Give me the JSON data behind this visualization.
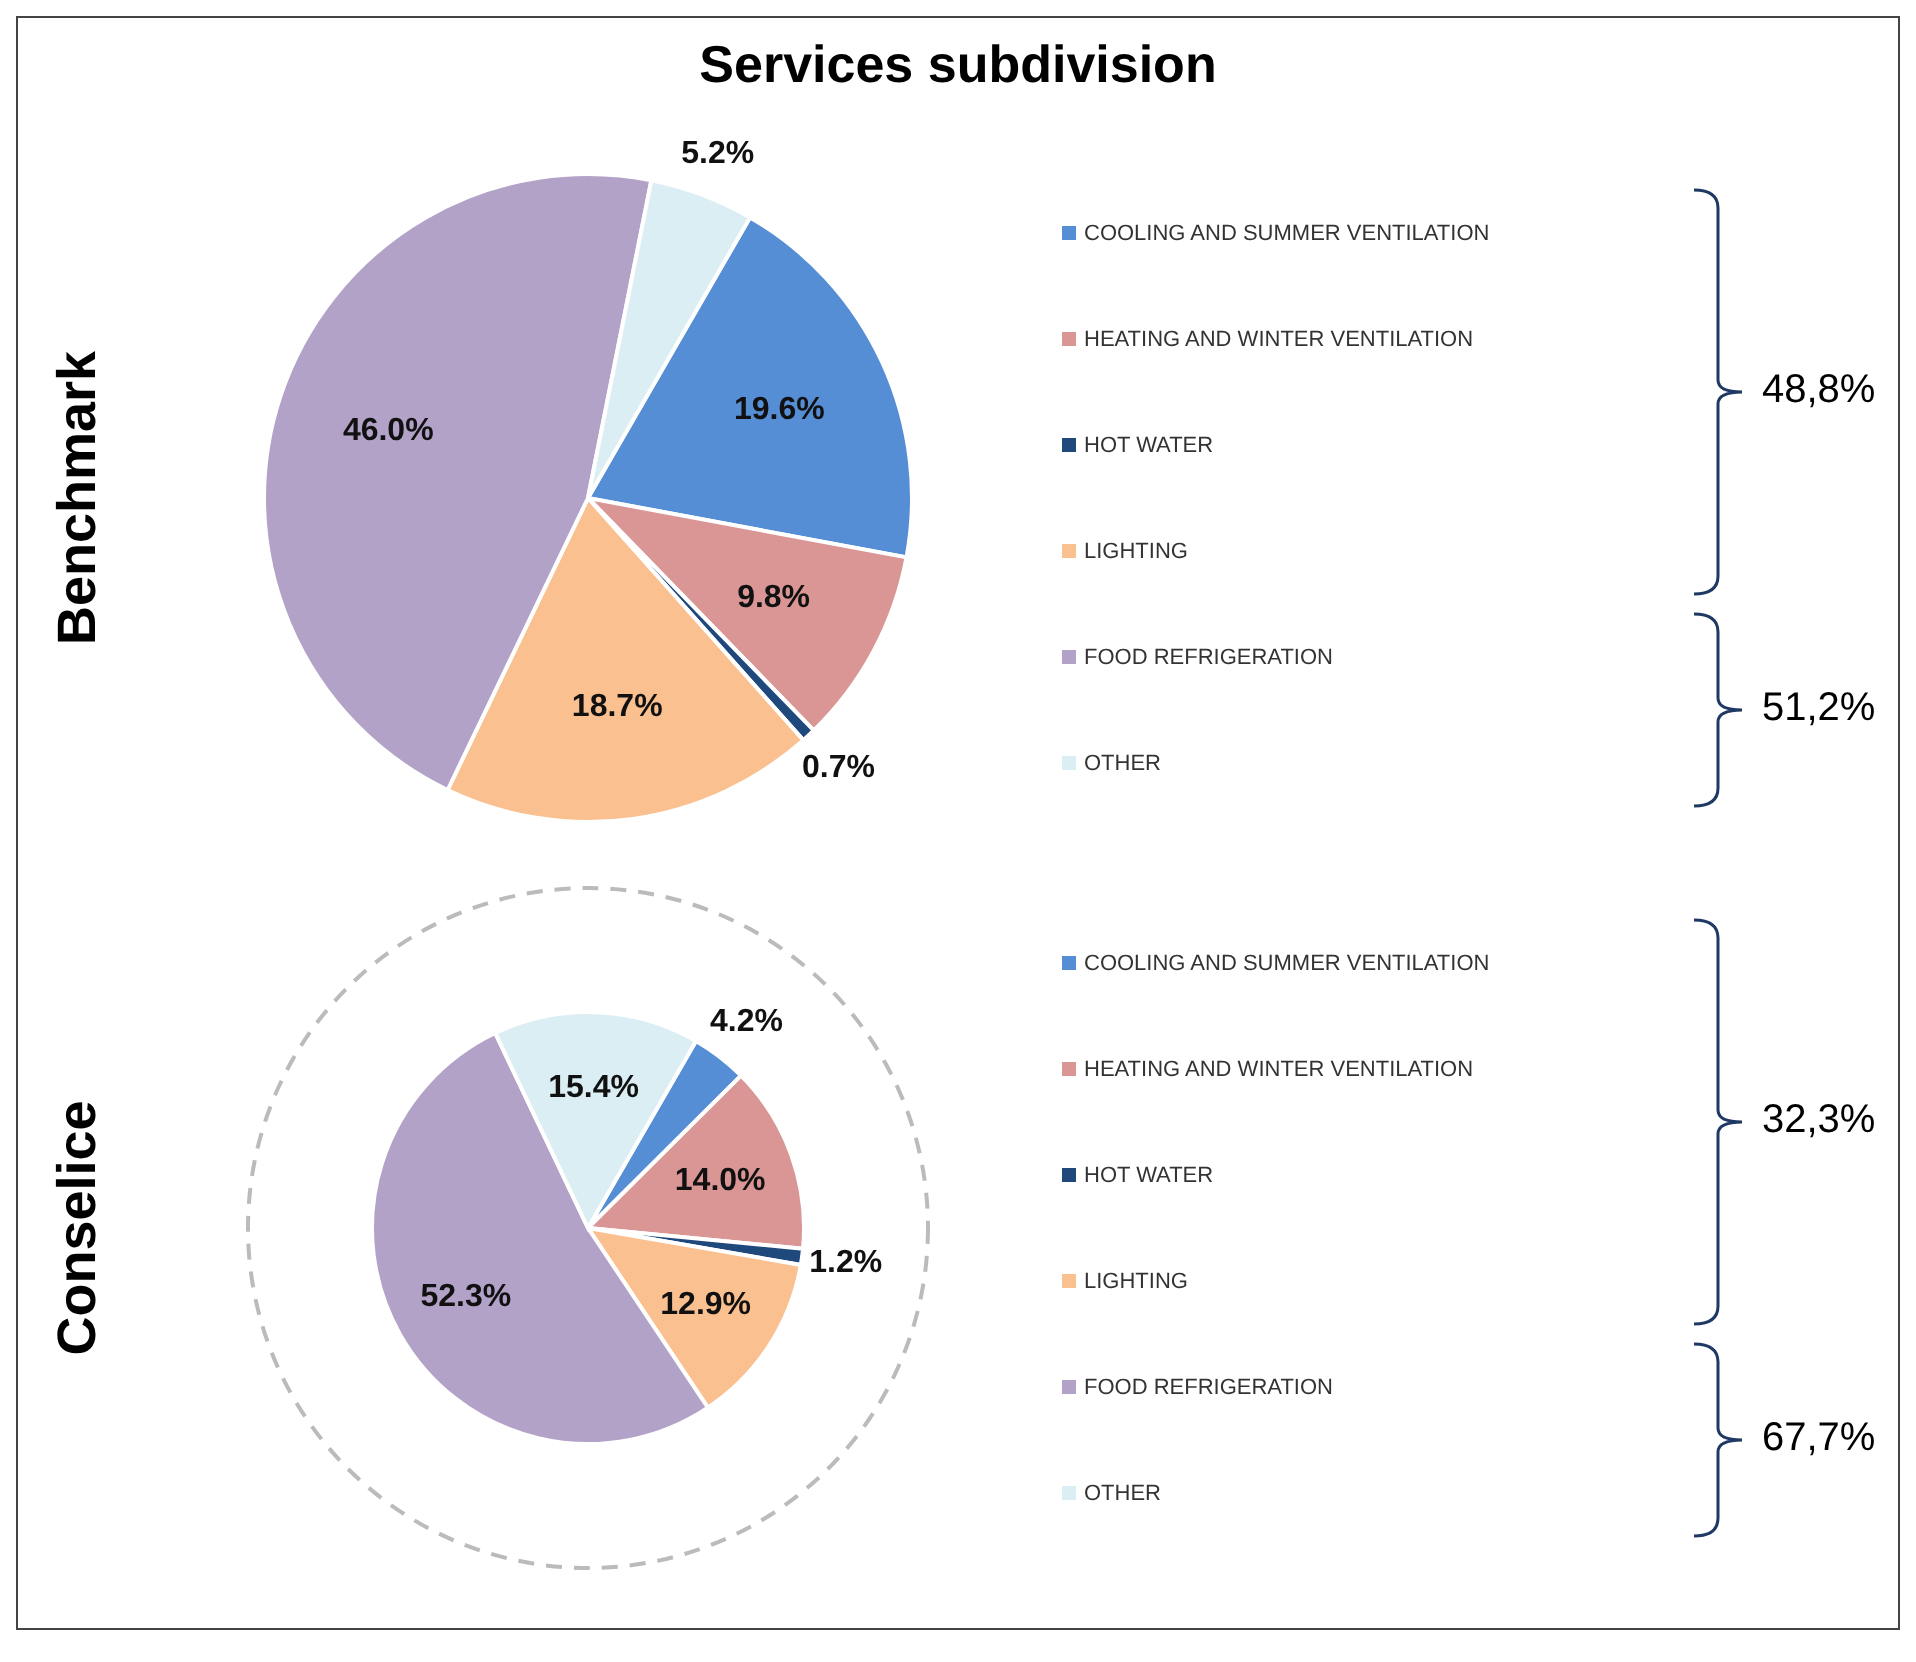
{
  "chart_data": [
    {
      "type": "pie",
      "title": "Services subdivision",
      "ylabel": "Benchmark",
      "categories": [
        "COOLING AND SUMMER VENTILATION",
        "HEATING AND WINTER VENTILATION",
        "HOT WATER",
        "LIGHTING",
        "FOOD REFRIGERATION",
        "OTHER"
      ],
      "values": [
        19.6,
        9.8,
        0.7,
        18.7,
        46.0,
        5.2
      ],
      "value_labels": [
        "19.6%",
        "9.8%",
        "0.7%",
        "18.7%",
        "46.0%",
        "5.2%"
      ],
      "colors": [
        "#558ed5",
        "#d99694",
        "#1f497d",
        "#fac090",
        "#b3a2c7",
        "#dbeef4"
      ],
      "legend": "right",
      "annotations": [
        "48,8%",
        "51,2%"
      ]
    },
    {
      "type": "pie",
      "ylabel": "Conselice",
      "categories": [
        "COOLING AND SUMMER VENTILATION",
        "HEATING AND WINTER VENTILATION",
        "HOT WATER",
        "LIGHTING",
        "FOOD REFRIGERATION",
        "OTHER"
      ],
      "values": [
        4.2,
        14.0,
        1.2,
        12.9,
        52.3,
        15.4
      ],
      "value_labels": [
        "4.2%",
        "14.0%",
        "1.2%",
        "12.9%",
        "52.3%",
        "15.4%"
      ],
      "colors": [
        "#558ed5",
        "#d99694",
        "#1f497d",
        "#fac090",
        "#b3a2c7",
        "#dbeef4"
      ],
      "legend": "right",
      "annotations": [
        "32,3%",
        "67,7%"
      ]
    }
  ]
}
